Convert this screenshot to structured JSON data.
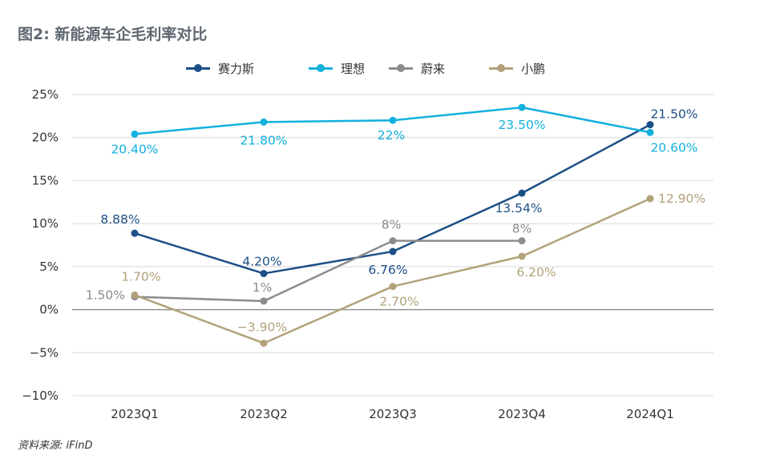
{
  "title": "图2: 新能源车企毛利率对比",
  "source": "资料来源: iFinD",
  "chart_data": {
    "type": "line",
    "categories": [
      "2023Q1",
      "2023Q2",
      "2023Q3",
      "2023Q4",
      "2024Q1"
    ],
    "ylim": [
      -10,
      25
    ],
    "yticks": [
      -10,
      -5,
      0,
      5,
      10,
      15,
      20,
      25
    ],
    "ytick_labels": [
      "−10%",
      "−5%",
      "0%",
      "5%",
      "10%",
      "15%",
      "20%",
      "25%"
    ],
    "legend_position": "top",
    "grid": "horizontal",
    "series": [
      {
        "name": "赛力斯",
        "color": "#1c4f86",
        "values": [
          8.88,
          4.2,
          6.76,
          13.54,
          21.5
        ],
        "labels": [
          "8.88%",
          "4.20%",
          "6.76%",
          "13.54%",
          "21.50%"
        ]
      },
      {
        "name": "理想",
        "color": "#13b0dd",
        "values": [
          20.4,
          21.8,
          22,
          23.5,
          20.6
        ],
        "labels": [
          "20.40%",
          "21.80%",
          "22%",
          "23.50%",
          "20.60%"
        ]
      },
      {
        "name": "蔚来",
        "color": "#8c8c8f",
        "values": [
          1.5,
          1,
          8,
          8,
          null
        ],
        "labels": [
          "1.50%",
          "1%",
          "8%",
          "8%",
          null
        ]
      },
      {
        "name": "小鹏",
        "color": "#b2a27a",
        "values": [
          1.7,
          -3.9,
          2.7,
          6.2,
          12.9
        ],
        "labels": [
          "1.70%",
          "−3.90%",
          "2.70%",
          "6.20%",
          "12.90%"
        ]
      }
    ]
  }
}
